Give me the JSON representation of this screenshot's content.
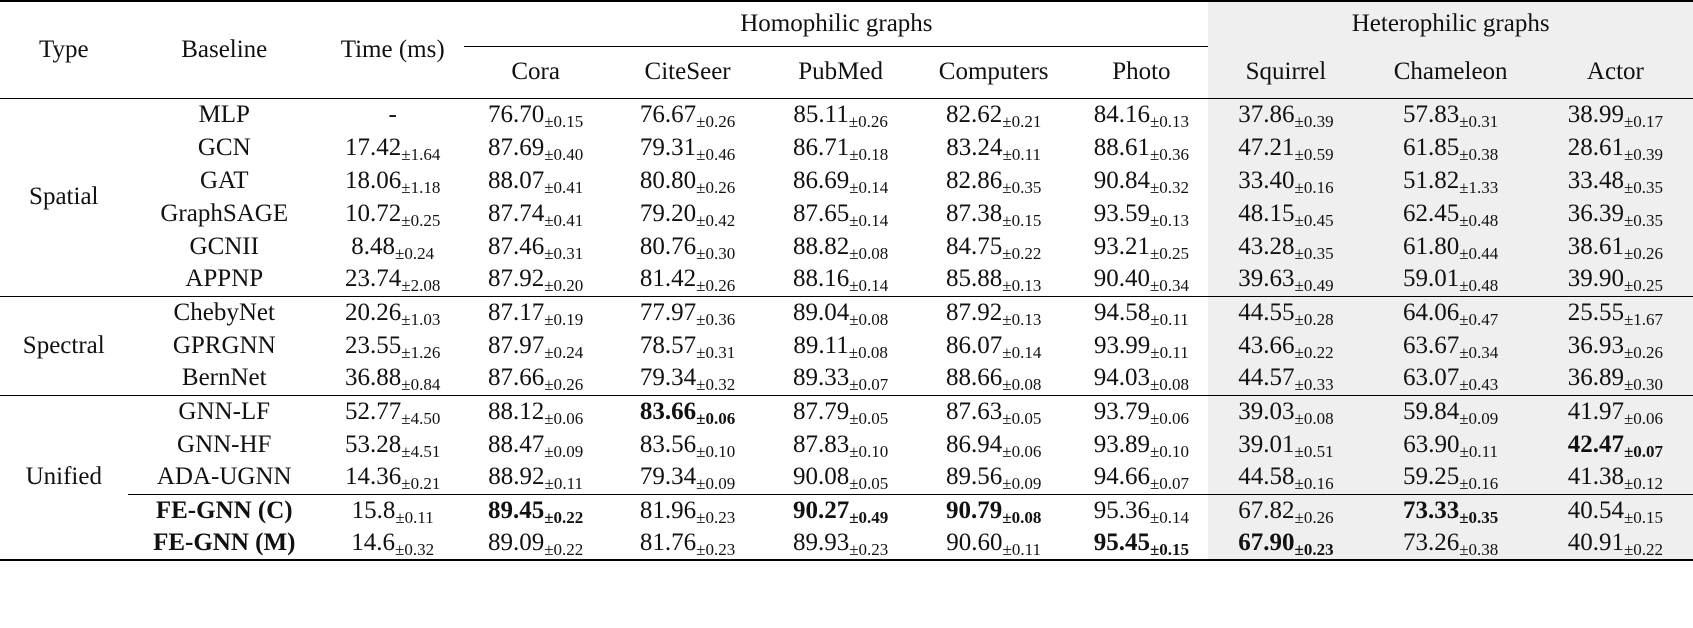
{
  "header": {
    "type": "Type",
    "baseline": "Baseline",
    "time": "Time (ms)",
    "homo_group": "Homophilic graphs",
    "hetero_group": "Heterophilic graphs",
    "datasets": [
      "Cora",
      "CiteSeer",
      "PubMed",
      "Computers",
      "Photo",
      "Squirrel",
      "Chameleon",
      "Actor"
    ]
  },
  "groups": [
    {
      "type": "Spatial",
      "rows": [
        {
          "name": "MLP",
          "time": [
            "-",
            ""
          ],
          "vals": [
            [
              "76.70",
              "±0.15"
            ],
            [
              "76.67",
              "±0.26"
            ],
            [
              "85.11",
              "±0.26"
            ],
            [
              "82.62",
              "±0.21"
            ],
            [
              "84.16",
              "±0.13"
            ],
            [
              "37.86",
              "±0.39"
            ],
            [
              "57.83",
              "±0.31"
            ],
            [
              "38.99",
              "±0.17"
            ]
          ]
        },
        {
          "name": "GCN",
          "time": [
            "17.42",
            "±1.64"
          ],
          "vals": [
            [
              "87.69",
              "±0.40"
            ],
            [
              "79.31",
              "±0.46"
            ],
            [
              "86.71",
              "±0.18"
            ],
            [
              "83.24",
              "±0.11"
            ],
            [
              "88.61",
              "±0.36"
            ],
            [
              "47.21",
              "±0.59"
            ],
            [
              "61.85",
              "±0.38"
            ],
            [
              "28.61",
              "±0.39"
            ]
          ]
        },
        {
          "name": "GAT",
          "time": [
            "18.06",
            "±1.18"
          ],
          "vals": [
            [
              "88.07",
              "±0.41"
            ],
            [
              "80.80",
              "±0.26"
            ],
            [
              "86.69",
              "±0.14"
            ],
            [
              "82.86",
              "±0.35"
            ],
            [
              "90.84",
              "±0.32"
            ],
            [
              "33.40",
              "±0.16"
            ],
            [
              "51.82",
              "±1.33"
            ],
            [
              "33.48",
              "±0.35"
            ]
          ]
        },
        {
          "name": "GraphSAGE",
          "time": [
            "10.72",
            "±0.25"
          ],
          "vals": [
            [
              "87.74",
              "±0.41"
            ],
            [
              "79.20",
              "±0.42"
            ],
            [
              "87.65",
              "±0.14"
            ],
            [
              "87.38",
              "±0.15"
            ],
            [
              "93.59",
              "±0.13"
            ],
            [
              "48.15",
              "±0.45"
            ],
            [
              "62.45",
              "±0.48"
            ],
            [
              "36.39",
              "±0.35"
            ]
          ]
        },
        {
          "name": "GCNII",
          "time": [
            "8.48",
            "±0.24"
          ],
          "vals": [
            [
              "87.46",
              "±0.31"
            ],
            [
              "80.76",
              "±0.30"
            ],
            [
              "88.82",
              "±0.08"
            ],
            [
              "84.75",
              "±0.22"
            ],
            [
              "93.21",
              "±0.25"
            ],
            [
              "43.28",
              "±0.35"
            ],
            [
              "61.80",
              "±0.44"
            ],
            [
              "38.61",
              "±0.26"
            ]
          ]
        },
        {
          "name": "APPNP",
          "time": [
            "23.74",
            "±2.08"
          ],
          "vals": [
            [
              "87.92",
              "±0.20"
            ],
            [
              "81.42",
              "±0.26"
            ],
            [
              "88.16",
              "±0.14"
            ],
            [
              "85.88",
              "±0.13"
            ],
            [
              "90.40",
              "±0.34"
            ],
            [
              "39.63",
              "±0.49"
            ],
            [
              "59.01",
              "±0.48"
            ],
            [
              "39.90",
              "±0.25"
            ]
          ]
        }
      ]
    },
    {
      "type": "Spectral",
      "rows": [
        {
          "name": "ChebyNet",
          "time": [
            "20.26",
            "±1.03"
          ],
          "vals": [
            [
              "87.17",
              "±0.19"
            ],
            [
              "77.97",
              "±0.36"
            ],
            [
              "89.04",
              "±0.08"
            ],
            [
              "87.92",
              "±0.13"
            ],
            [
              "94.58",
              "±0.11"
            ],
            [
              "44.55",
              "±0.28"
            ],
            [
              "64.06",
              "±0.47"
            ],
            [
              "25.55",
              "±1.67"
            ]
          ]
        },
        {
          "name": "GPRGNN",
          "time": [
            "23.55",
            "±1.26"
          ],
          "vals": [
            [
              "87.97",
              "±0.24"
            ],
            [
              "78.57",
              "±0.31"
            ],
            [
              "89.11",
              "±0.08"
            ],
            [
              "86.07",
              "±0.14"
            ],
            [
              "93.99",
              "±0.11"
            ],
            [
              "43.66",
              "±0.22"
            ],
            [
              "63.67",
              "±0.34"
            ],
            [
              "36.93",
              "±0.26"
            ]
          ]
        },
        {
          "name": "BernNet",
          "time": [
            "36.88",
            "±0.84"
          ],
          "vals": [
            [
              "87.66",
              "±0.26"
            ],
            [
              "79.34",
              "±0.32"
            ],
            [
              "89.33",
              "±0.07"
            ],
            [
              "88.66",
              "±0.08"
            ],
            [
              "94.03",
              "±0.08"
            ],
            [
              "44.57",
              "±0.33"
            ],
            [
              "63.07",
              "±0.43"
            ],
            [
              "36.89",
              "±0.30"
            ]
          ]
        }
      ]
    },
    {
      "type": "Unified",
      "rows": [
        {
          "name": "GNN-LF",
          "time": [
            "52.77",
            "±4.50"
          ],
          "vals": [
            [
              "88.12",
              "±0.06"
            ],
            [
              "83.66",
              "±0.06"
            ],
            [
              "87.79",
              "±0.05"
            ],
            [
              "87.63",
              "±0.05"
            ],
            [
              "93.79",
              "±0.06"
            ],
            [
              "39.03",
              "±0.08"
            ],
            [
              "59.84",
              "±0.09"
            ],
            [
              "41.97",
              "±0.06"
            ]
          ],
          "bold": [
            1
          ]
        },
        {
          "name": "GNN-HF",
          "time": [
            "53.28",
            "±4.51"
          ],
          "vals": [
            [
              "88.47",
              "±0.09"
            ],
            [
              "83.56",
              "±0.10"
            ],
            [
              "87.83",
              "±0.10"
            ],
            [
              "86.94",
              "±0.06"
            ],
            [
              "93.89",
              "±0.10"
            ],
            [
              "39.01",
              "±0.51"
            ],
            [
              "63.90",
              "±0.11"
            ],
            [
              "42.47",
              "±0.07"
            ]
          ],
          "bold": [
            7
          ]
        },
        {
          "name": "ADA-UGNN",
          "time": [
            "14.36",
            "±0.21"
          ],
          "vals": [
            [
              "88.92",
              "±0.11"
            ],
            [
              "79.34",
              "±0.09"
            ],
            [
              "90.08",
              "±0.05"
            ],
            [
              "89.56",
              "±0.09"
            ],
            [
              "94.66",
              "±0.07"
            ],
            [
              "44.58",
              "±0.16"
            ],
            [
              "59.25",
              "±0.16"
            ],
            [
              "41.38",
              "±0.12"
            ]
          ]
        }
      ],
      "ours": [
        {
          "name": "FE-GNN (C)",
          "time": [
            "15.8",
            "±0.11"
          ],
          "vals": [
            [
              "89.45",
              "±0.22"
            ],
            [
              "81.96",
              "±0.23"
            ],
            [
              "90.27",
              "±0.49"
            ],
            [
              "90.79",
              "±0.08"
            ],
            [
              "95.36",
              "±0.14"
            ],
            [
              "67.82",
              "±0.26"
            ],
            [
              "73.33",
              "±0.35"
            ],
            [
              "40.54",
              "±0.15"
            ]
          ],
          "bold": [
            0,
            2,
            3,
            6
          ]
        },
        {
          "name": "FE-GNN (M)",
          "time": [
            "14.6",
            "±0.32"
          ],
          "vals": [
            [
              "89.09",
              "±0.22"
            ],
            [
              "81.76",
              "±0.23"
            ],
            [
              "89.93",
              "±0.23"
            ],
            [
              "90.60",
              "±0.11"
            ],
            [
              "95.45",
              "±0.15"
            ],
            [
              "67.90",
              "±0.23"
            ],
            [
              "73.26",
              "±0.38"
            ],
            [
              "40.91",
              "±0.22"
            ]
          ],
          "bold": [
            4,
            5
          ]
        }
      ]
    }
  ]
}
